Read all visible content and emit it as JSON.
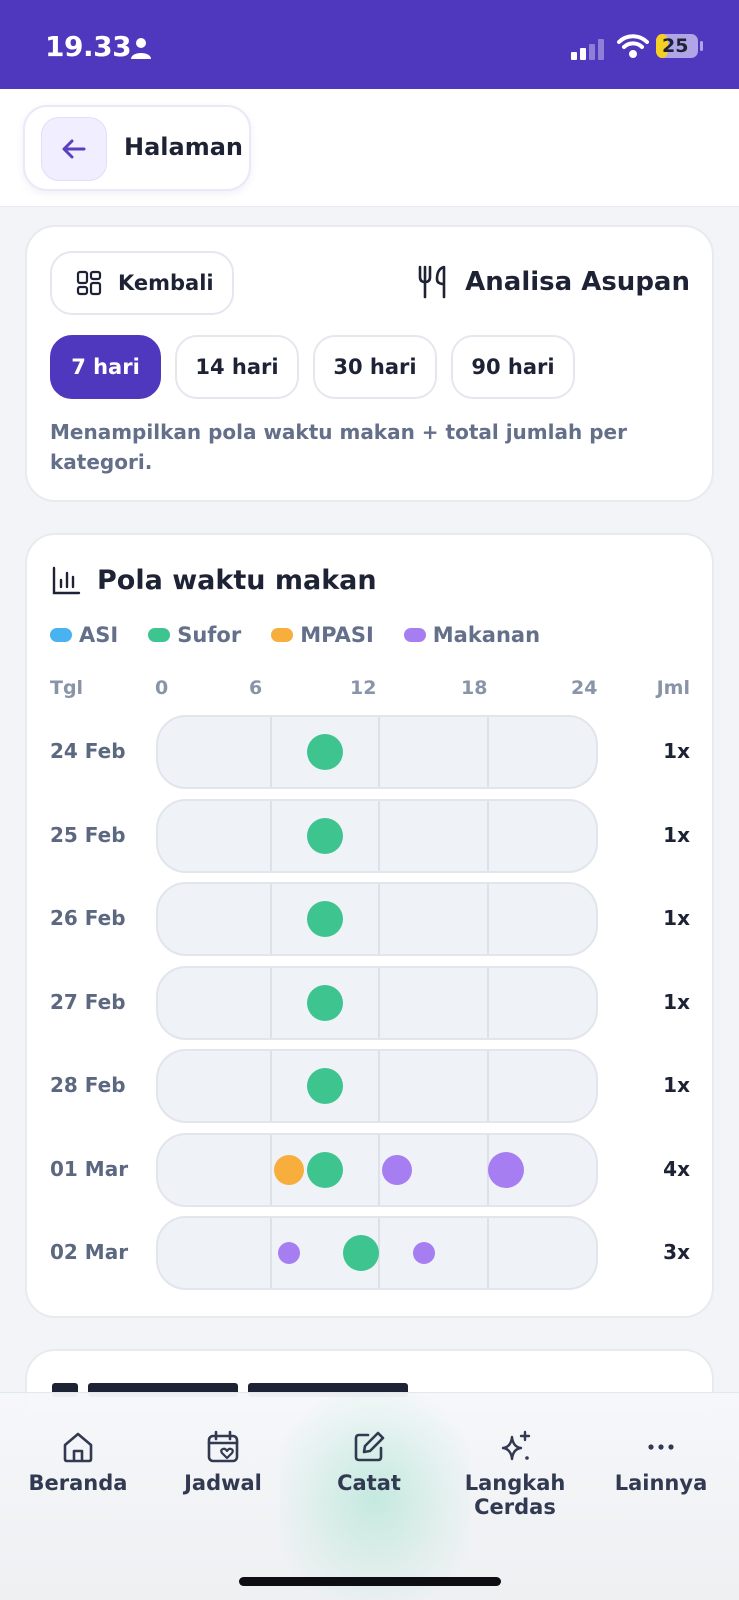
{
  "status_bar": {
    "time": "19.33",
    "battery": "25"
  },
  "header": {
    "title": "Halaman"
  },
  "filter_card": {
    "back_label": "Kembali",
    "section_title": "Analisa Asupan",
    "ranges": [
      {
        "label": "7 hari",
        "active": true
      },
      {
        "label": "14 hari",
        "active": false
      },
      {
        "label": "30 hari",
        "active": false
      },
      {
        "label": "90 hari",
        "active": false
      }
    ],
    "description": "Menampilkan pola waktu makan + total jumlah per kategori."
  },
  "chart_data": {
    "type": "scatter",
    "title": "Pola waktu makan",
    "legend": [
      {
        "name": "ASI",
        "color": "#48b3f0"
      },
      {
        "name": "Sufor",
        "color": "#3ec48f"
      },
      {
        "name": "MPASI",
        "color": "#f7ae3c"
      },
      {
        "name": "Makanan",
        "color": "#a77ef2"
      }
    ],
    "x_axis": {
      "label_left": "Tgl",
      "ticks": [
        "0",
        "6",
        "12",
        "18",
        "24"
      ],
      "label_right": "Jml",
      "range": [
        0,
        24
      ]
    },
    "rows": [
      {
        "date": "24 Feb",
        "count": "1x",
        "events": [
          {
            "hour": 9,
            "cat": "Sufor",
            "size": "large"
          }
        ]
      },
      {
        "date": "25 Feb",
        "count": "1x",
        "events": [
          {
            "hour": 9,
            "cat": "Sufor",
            "size": "large"
          }
        ]
      },
      {
        "date": "26 Feb",
        "count": "1x",
        "events": [
          {
            "hour": 9,
            "cat": "Sufor",
            "size": "large"
          }
        ]
      },
      {
        "date": "27 Feb",
        "count": "1x",
        "events": [
          {
            "hour": 9,
            "cat": "Sufor",
            "size": "large"
          }
        ]
      },
      {
        "date": "28 Feb",
        "count": "1x",
        "events": [
          {
            "hour": 9,
            "cat": "Sufor",
            "size": "large"
          }
        ]
      },
      {
        "date": "01 Mar",
        "count": "4x",
        "events": [
          {
            "hour": 7,
            "cat": "MPASI",
            "size": "medium"
          },
          {
            "hour": 9,
            "cat": "Sufor",
            "size": "large"
          },
          {
            "hour": 13,
            "cat": "Makanan",
            "size": "medium"
          },
          {
            "hour": 19,
            "cat": "Makanan",
            "size": "large"
          }
        ]
      },
      {
        "date": "02 Mar",
        "count": "3x",
        "events": [
          {
            "hour": 7,
            "cat": "Makanan",
            "size": "small"
          },
          {
            "hour": 11,
            "cat": "Sufor",
            "size": "large"
          },
          {
            "hour": 14.5,
            "cat": "Makanan",
            "size": "small"
          }
        ]
      }
    ]
  },
  "nav": {
    "items": [
      {
        "label": "Beranda",
        "icon": "home-icon"
      },
      {
        "label": "Jadwal",
        "icon": "calendar-heart-icon"
      },
      {
        "label": "Catat",
        "icon": "edit-icon"
      },
      {
        "label": "Langkah Cerdas",
        "icon": "sparkles-icon"
      },
      {
        "label": "Lainnya",
        "icon": "more-icon"
      }
    ]
  }
}
